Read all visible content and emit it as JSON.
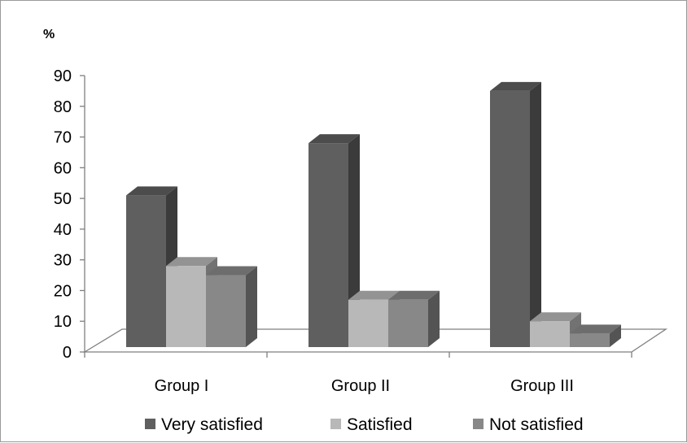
{
  "chart_data": {
    "type": "bar",
    "ylabel": "%",
    "ylim": [
      0,
      90
    ],
    "yticks": [
      "0",
      "10",
      "20",
      "30",
      "40",
      "50",
      "60",
      "70",
      "80",
      "90"
    ],
    "categories": [
      "Group I",
      "Group II",
      "Group III"
    ],
    "series": [
      {
        "name": "Very satisfied",
        "values": [
          51,
          68,
          85
        ],
        "color": "#5f5f5f"
      },
      {
        "name": "Satisfied",
        "values": [
          28,
          17,
          10
        ],
        "color": "#b8b8b8"
      },
      {
        "name": "Not satisfied",
        "values": [
          25,
          17,
          6
        ],
        "color": "#888888"
      }
    ],
    "legend_position": "bottom",
    "grid": false,
    "style": "3d-clustered-column"
  }
}
